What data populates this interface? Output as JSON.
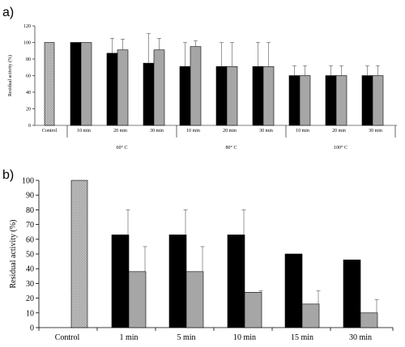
{
  "panel_a_label": "a)",
  "panel_b_label": "b)",
  "chart_data": [
    {
      "type": "bar",
      "panel": "a)",
      "ylabel": "Residual activity (%)",
      "xlabel": "",
      "ylim": [
        0,
        120
      ],
      "yticks": [
        0,
        20,
        40,
        60,
        80,
        100,
        120
      ],
      "control_label": "Control",
      "control_value": 100,
      "groups": [
        {
          "label": "60° C",
          "times": [
            "10 min",
            "20 min",
            "30 min"
          ],
          "black": [
            100,
            87,
            75
          ],
          "black_err": [
            0,
            18,
            36
          ],
          "gray": [
            100,
            91,
            91
          ],
          "gray_err": [
            0,
            13,
            14
          ]
        },
        {
          "label": "80° C",
          "times": [
            "10 min",
            "20 min",
            "30 min"
          ],
          "black": [
            71,
            71,
            71
          ],
          "black_err": [
            29,
            29,
            29
          ],
          "gray": [
            95,
            71,
            71
          ],
          "gray_err": [
            7,
            29,
            29
          ]
        },
        {
          "label": "100° C",
          "times": [
            "10 min",
            "20 min",
            "30 min"
          ],
          "black": [
            60,
            60,
            60
          ],
          "black_err": [
            12,
            12,
            12
          ],
          "gray": [
            60,
            60,
            60
          ],
          "gray_err": [
            12,
            12,
            12
          ]
        }
      ],
      "colors": {
        "black": "#000000",
        "gray": "#a6a6a6",
        "control": "#d0d0d0"
      }
    },
    {
      "type": "bar",
      "panel": "b)",
      "ylabel": "Residual activity (%)",
      "xlabel": "",
      "ylim": [
        0,
        100
      ],
      "yticks": [
        0,
        10,
        20,
        30,
        40,
        50,
        60,
        70,
        80,
        90,
        100
      ],
      "control_label": "Control",
      "control_value": 100,
      "categories": [
        "1 min",
        "5 min",
        "10 min",
        "15 min",
        "30 min"
      ],
      "black": [
        63,
        63,
        63,
        50,
        46
      ],
      "black_err": [
        17,
        17,
        17,
        0,
        0
      ],
      "gray": [
        38,
        38,
        24,
        16,
        10
      ],
      "gray_err": [
        17,
        17,
        1,
        9,
        9
      ],
      "colors": {
        "black": "#000000",
        "gray": "#a6a6a6",
        "control": "#d0d0d0"
      }
    }
  ]
}
